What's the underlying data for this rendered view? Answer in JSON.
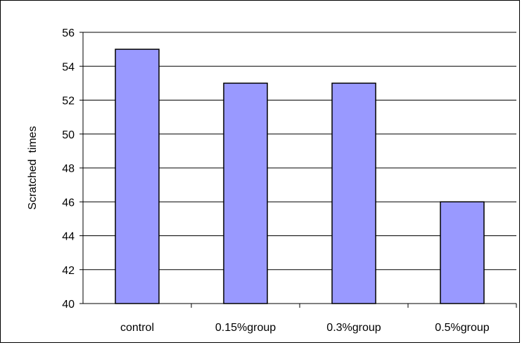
{
  "chart_data": {
    "type": "bar",
    "title": "",
    "xlabel": "",
    "ylabel": "Scratched  times",
    "categories": [
      "control",
      "0.15%group",
      "0.3%group",
      "0.5%group"
    ],
    "values": [
      55,
      53,
      53,
      46
    ],
    "ylim": [
      40,
      56
    ],
    "yticks": [
      40,
      42,
      44,
      46,
      48,
      50,
      52,
      54,
      56
    ],
    "grid": true,
    "legend": "none",
    "bar_color": "#9999ff",
    "bar_edge_color": "#000000"
  }
}
